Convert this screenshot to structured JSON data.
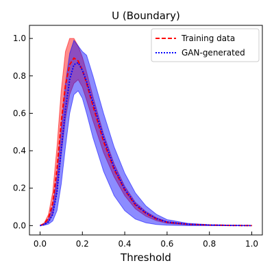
{
  "chart_data": {
    "type": "line",
    "title": "U (Boundary)",
    "xlabel": "Threshold",
    "ylabel": "",
    "xlim": [
      -0.05,
      1.05
    ],
    "ylim": [
      -0.05,
      1.07
    ],
    "xticks": [
      "0.0",
      "0.2",
      "0.4",
      "0.6",
      "0.8",
      "1.0"
    ],
    "yticks": [
      "0.0",
      "0.2",
      "0.4",
      "0.6",
      "0.8",
      "1.0"
    ],
    "grid": false,
    "legend_position": "top-right",
    "x": [
      0.0,
      0.02,
      0.04,
      0.06,
      0.08,
      0.1,
      0.12,
      0.14,
      0.16,
      0.18,
      0.2,
      0.22,
      0.25,
      0.3,
      0.35,
      0.4,
      0.45,
      0.5,
      0.55,
      0.6,
      0.7,
      0.8,
      0.9,
      1.0
    ],
    "series": [
      {
        "name": "Training data",
        "color": "#ff0000",
        "line_style": "dashed",
        "mean": [
          0.0,
          0.01,
          0.04,
          0.12,
          0.3,
          0.55,
          0.75,
          0.86,
          0.895,
          0.88,
          0.83,
          0.76,
          0.64,
          0.45,
          0.3,
          0.19,
          0.11,
          0.065,
          0.035,
          0.018,
          0.007,
          0.003,
          0.001,
          0.0
        ],
        "band_upper": [
          0.0,
          0.015,
          0.06,
          0.18,
          0.42,
          0.72,
          0.93,
          1.0,
          1.0,
          0.96,
          0.9,
          0.82,
          0.69,
          0.49,
          0.33,
          0.21,
          0.125,
          0.075,
          0.042,
          0.022,
          0.009,
          0.004,
          0.002,
          0.001
        ],
        "band_lower": [
          0.0,
          0.005,
          0.02,
          0.06,
          0.18,
          0.38,
          0.57,
          0.7,
          0.76,
          0.78,
          0.74,
          0.67,
          0.56,
          0.39,
          0.26,
          0.16,
          0.09,
          0.05,
          0.026,
          0.012,
          0.004,
          0.001,
          0.0,
          0.0
        ]
      },
      {
        "name": "GAN-generated",
        "color": "#0000ff",
        "line_style": "dotted",
        "mean": [
          0.0,
          0.005,
          0.02,
          0.06,
          0.18,
          0.4,
          0.62,
          0.78,
          0.86,
          0.87,
          0.83,
          0.77,
          0.66,
          0.47,
          0.31,
          0.195,
          0.115,
          0.068,
          0.037,
          0.019,
          0.007,
          0.003,
          0.001,
          0.0
        ],
        "band_upper": [
          0.0,
          0.01,
          0.035,
          0.1,
          0.26,
          0.52,
          0.76,
          0.92,
          0.99,
          0.96,
          0.93,
          0.91,
          0.8,
          0.6,
          0.42,
          0.28,
          0.175,
          0.105,
          0.06,
          0.032,
          0.012,
          0.005,
          0.002,
          0.001
        ],
        "band_lower": [
          0.0,
          0.002,
          0.008,
          0.025,
          0.08,
          0.22,
          0.42,
          0.6,
          0.7,
          0.72,
          0.68,
          0.6,
          0.47,
          0.29,
          0.16,
          0.08,
          0.035,
          0.015,
          0.006,
          0.002,
          0.0,
          0.0,
          0.0,
          0.0
        ]
      }
    ]
  }
}
